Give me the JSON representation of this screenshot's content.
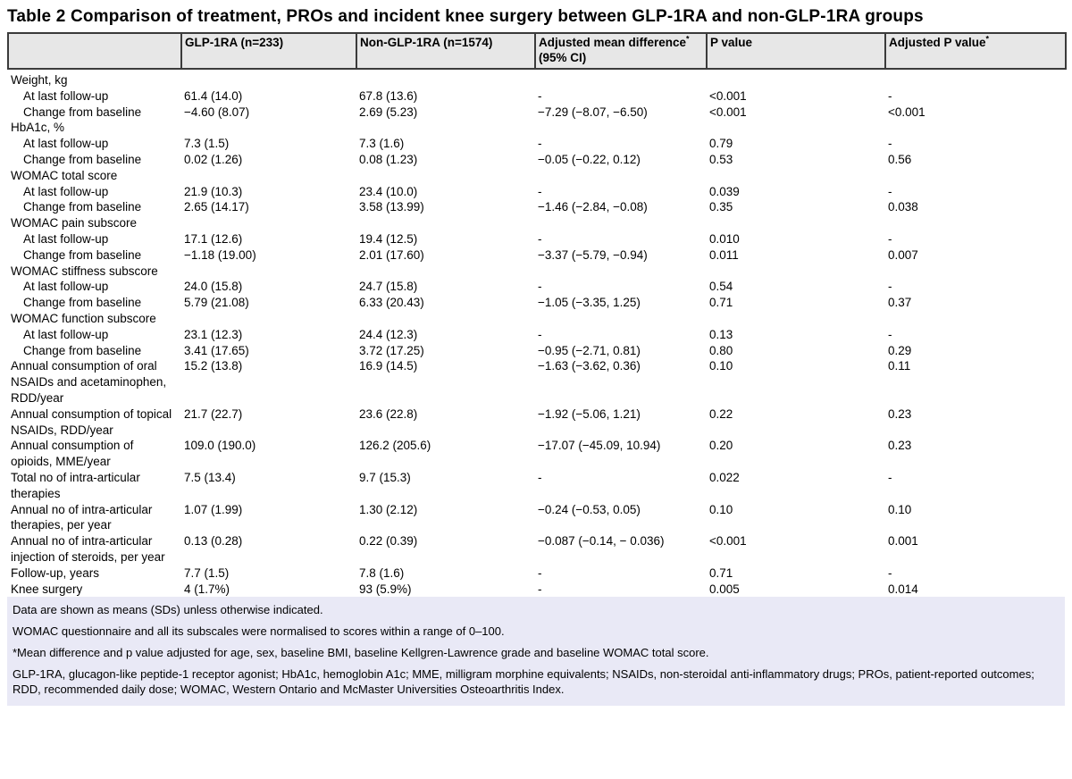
{
  "title": "Table 2 Comparison of treatment, PROs and incident knee surgery between GLP-1RA and non-GLP-1RA groups",
  "table": {
    "columns": [
      {
        "label": ""
      },
      {
        "label": "GLP-1RA (n=233)"
      },
      {
        "label": "Non-GLP-1RA (n=1574)"
      },
      {
        "label": "Adjusted mean difference",
        "sup": "*",
        "line2": "(95% CI)"
      },
      {
        "label": "P value"
      },
      {
        "label": "Adjusted P value",
        "sup": "*"
      }
    ],
    "rows": [
      {
        "type": "section",
        "label": "Weight, kg"
      },
      {
        "type": "data",
        "indent": true,
        "label": "At last follow-up",
        "values": [
          "61.4 (14.0)",
          "67.8 (13.6)",
          "-",
          "<0.001",
          "-"
        ]
      },
      {
        "type": "data",
        "indent": true,
        "label": "Change from baseline",
        "values": [
          "−4.60 (8.07)",
          "2.69 (5.23)",
          "−7.29 (−8.07, −6.50)",
          "<0.001",
          "<0.001"
        ]
      },
      {
        "type": "section",
        "label": "HbA1c, %"
      },
      {
        "type": "data",
        "indent": true,
        "label": "At last follow-up",
        "values": [
          "7.3 (1.5)",
          "7.3 (1.6)",
          "-",
          "0.79",
          "-"
        ]
      },
      {
        "type": "data",
        "indent": true,
        "label": "Change from baseline",
        "values": [
          "0.02 (1.26)",
          "0.08 (1.23)",
          "−0.05 (−0.22, 0.12)",
          "0.53",
          "0.56"
        ]
      },
      {
        "type": "section",
        "label": "WOMAC total score"
      },
      {
        "type": "data",
        "indent": true,
        "label": "At last follow-up",
        "values": [
          "21.9 (10.3)",
          "23.4 (10.0)",
          "-",
          "0.039",
          "-"
        ]
      },
      {
        "type": "data",
        "indent": true,
        "label": "Change from baseline",
        "values": [
          "2.65 (14.17)",
          "3.58 (13.99)",
          "−1.46 (−2.84, −0.08)",
          "0.35",
          "0.038"
        ]
      },
      {
        "type": "section",
        "label": "WOMAC pain subscore"
      },
      {
        "type": "data",
        "indent": true,
        "label": "At last follow-up",
        "values": [
          "17.1 (12.6)",
          "19.4 (12.5)",
          "-",
          "0.010",
          "-"
        ]
      },
      {
        "type": "data",
        "indent": true,
        "label": "Change from baseline",
        "values": [
          "−1.18 (19.00)",
          "2.01 (17.60)",
          "−3.37 (−5.79, −0.94)",
          "0.011",
          "0.007"
        ]
      },
      {
        "type": "section",
        "label": "WOMAC stiffness subscore"
      },
      {
        "type": "data",
        "indent": true,
        "label": "At last follow-up",
        "values": [
          "24.0 (15.8)",
          "24.7 (15.8)",
          "-",
          "0.54",
          "-"
        ]
      },
      {
        "type": "data",
        "indent": true,
        "label": "Change from baseline",
        "values": [
          "5.79 (21.08)",
          "6.33 (20.43)",
          "−1.05 (−3.35, 1.25)",
          "0.71",
          "0.37"
        ]
      },
      {
        "type": "section",
        "label": "WOMAC function subscore"
      },
      {
        "type": "data",
        "indent": true,
        "label": "At last follow-up",
        "values": [
          "23.1 (12.3)",
          "24.4 (12.3)",
          "-",
          "0.13",
          "-"
        ]
      },
      {
        "type": "data",
        "indent": true,
        "label": "Change from baseline",
        "values": [
          "3.41 (17.65)",
          "3.72 (17.25)",
          "−0.95 (−2.71, 0.81)",
          "0.80",
          "0.29"
        ]
      },
      {
        "type": "data",
        "label": "Annual consumption of oral NSAIDs and acetaminophen, RDD/year",
        "values": [
          "15.2 (13.8)",
          "16.9 (14.5)",
          "−1.63 (−3.62, 0.36)",
          "0.10",
          "0.11"
        ]
      },
      {
        "type": "data",
        "label": "Annual consumption of topical NSAIDs, RDD/year",
        "values": [
          "21.7 (22.7)",
          "23.6 (22.8)",
          "−1.92 (−5.06, 1.21)",
          "0.22",
          "0.23"
        ]
      },
      {
        "type": "data",
        "label": "Annual consumption of opioids, MME/year",
        "values": [
          "109.0 (190.0)",
          "126.2 (205.6)",
          "−17.07 (−45.09, 10.94)",
          "0.20",
          "0.23"
        ]
      },
      {
        "type": "data",
        "label": "Total no of intra-articular therapies",
        "values": [
          "7.5 (13.4)",
          "9.7 (15.3)",
          "-",
          "0.022",
          "-"
        ]
      },
      {
        "type": "data",
        "label": "Annual no of intra-articular therapies, per year",
        "values": [
          "1.07 (1.99)",
          "1.30 (2.12)",
          "−0.24 (−0.53, 0.05)",
          "0.10",
          "0.10"
        ]
      },
      {
        "type": "data",
        "label": "Annual no of intra-articular injection of steroids, per year",
        "values": [
          "0.13 (0.28)",
          "0.22 (0.39)",
          "−0.087 (−0.14, − 0.036)",
          "<0.001",
          "0.001"
        ]
      },
      {
        "type": "data",
        "label": "Follow-up, years",
        "values": [
          "7.7 (1.5)",
          "7.8 (1.6)",
          "-",
          "0.71",
          "-"
        ]
      },
      {
        "type": "data",
        "label": "Knee surgery",
        "values": [
          "4 (1.7%)",
          "93 (5.9%)",
          "-",
          "0.005",
          "0.014"
        ]
      }
    ]
  },
  "footnotes": [
    "Data are shown as means (SDs) unless otherwise indicated.",
    "WOMAC questionnaire and all its subscales were normalised to scores within a range of 0–100.",
    "*Mean difference and p value adjusted for age, sex, baseline BMI, baseline Kellgren-Lawrence grade and baseline WOMAC total score.",
    "GLP-1RA, glucagon-like peptide-1 receptor agonist; HbA1c, hemoglobin A1c; MME, milligram morphine equivalents; NSAIDs, non-steroidal anti-inflammatory drugs; PROs, patient-reported outcomes; RDD, recommended daily dose; WOMAC, Western Ontario and McMaster Universities Osteoarthritis Index."
  ]
}
